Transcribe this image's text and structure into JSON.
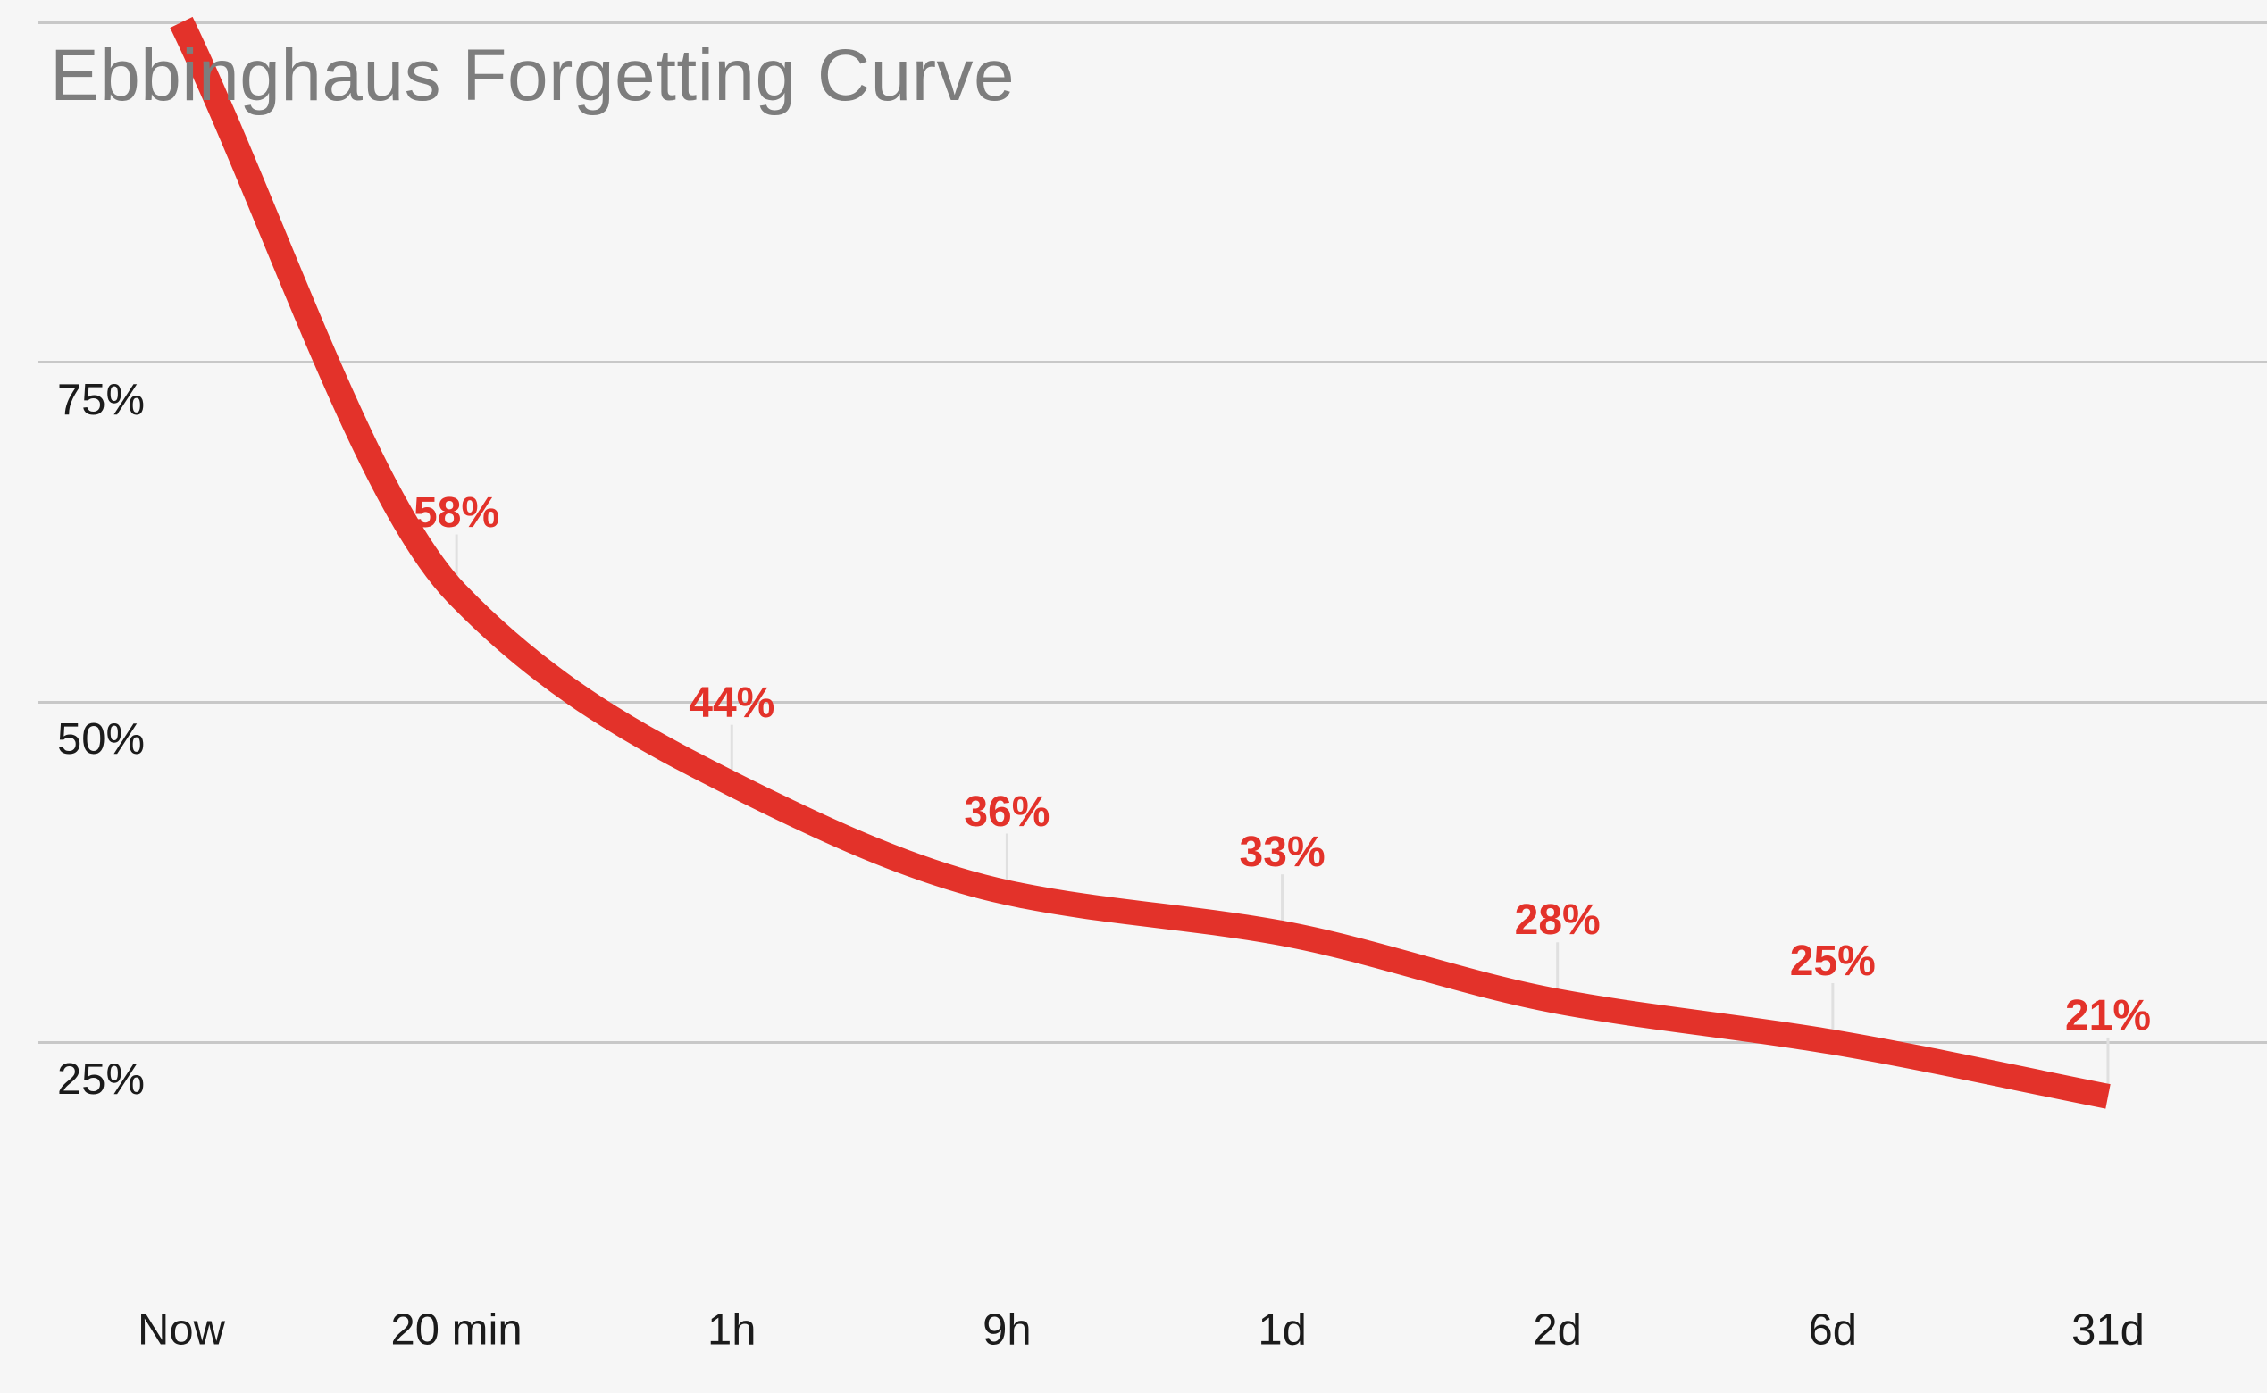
{
  "chart_data": {
    "type": "line",
    "title": "Ebbinghaus Forgetting Curve",
    "categories": [
      "Now",
      "20 min",
      "1h",
      "9h",
      "1d",
      "2d",
      "6d",
      "31d"
    ],
    "values": [
      100,
      58,
      44,
      36,
      33,
      28,
      25,
      21
    ],
    "point_labels": [
      "",
      "58%",
      "44%",
      "36%",
      "33%",
      "28%",
      "25%",
      "21%"
    ],
    "y_axis": {
      "tick_values": [
        100,
        75,
        50,
        25
      ],
      "tick_labels": [
        "",
        "75%",
        "50%",
        "25%"
      ]
    },
    "grid": true,
    "legend": false,
    "smooth": true,
    "colors": {
      "line": "#e3322a",
      "data_label": "#e3322a",
      "grid": "#c8c8c8",
      "axis_text": "#1b1b1b",
      "title_text": "#7d7d7d",
      "background": "#f6f6f6",
      "pointer_line": "#e0e0e0"
    }
  }
}
